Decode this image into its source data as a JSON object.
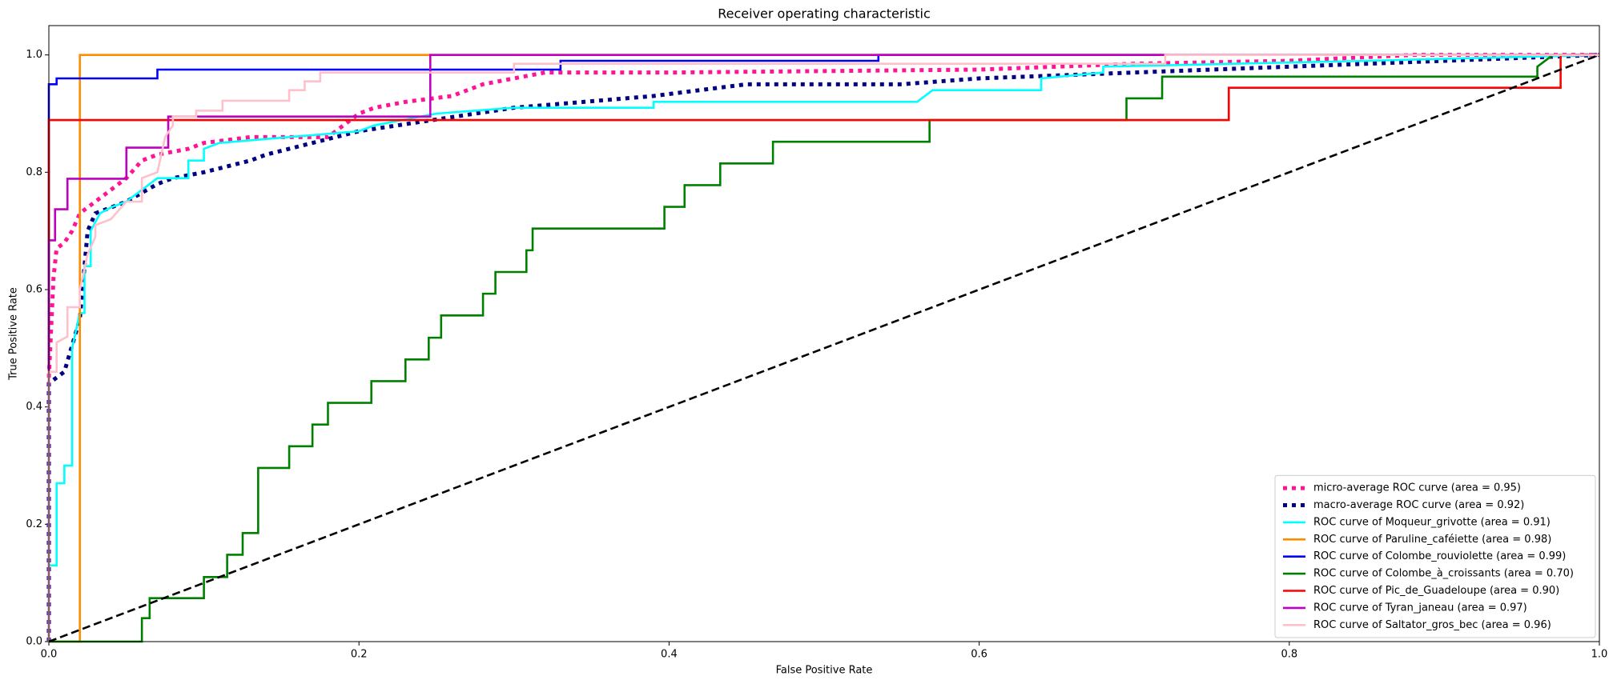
{
  "chart_data": {
    "type": "line",
    "title": "Receiver operating characteristic",
    "x_label": "False Positive Rate",
    "y_label": "True Positive Rate",
    "xlim": [
      0,
      1
    ],
    "ylim": [
      0,
      1.05
    ],
    "xticks": [
      {
        "value": 0,
        "label": "0.0"
      },
      0.2,
      0.4,
      0.6,
      0.8,
      {
        "value": 1,
        "label": "1.0"
      }
    ],
    "yticks": [
      {
        "value": 0,
        "label": "0.0"
      },
      0.2,
      0.4,
      0.6,
      0.8,
      {
        "value": 1,
        "label": "1.0"
      }
    ],
    "grid": false,
    "legend": "lower right",
    "series": [
      {
        "name": "micro-average ROC curve (area = 0.95)",
        "color": "deeppink",
        "style": "dotted",
        "x": [
          0,
          0,
          0.003,
          0.005,
          0.01,
          0.015,
          0.02,
          0.03,
          0.05,
          0.06,
          0.07,
          0.09,
          0.1,
          0.13,
          0.18,
          0.19,
          0.2,
          0.21,
          0.23,
          0.26,
          0.28,
          0.32,
          0.4,
          0.6,
          0.7,
          0.8,
          0.88,
          1
        ],
        "y": [
          0,
          0.45,
          0.62,
          0.67,
          0.68,
          0.7,
          0.73,
          0.75,
          0.79,
          0.82,
          0.83,
          0.84,
          0.85,
          0.86,
          0.86,
          0.88,
          0.9,
          0.91,
          0.92,
          0.93,
          0.95,
          0.97,
          0.97,
          0.975,
          0.985,
          0.99,
          1,
          1
        ]
      },
      {
        "name": "macro-average ROC curve (area = 0.92)",
        "color": "navy",
        "style": "dotted",
        "x": [
          0,
          0,
          0.01,
          0.02,
          0.025,
          0.03,
          0.05,
          0.07,
          0.08,
          0.1,
          0.13,
          0.14,
          0.17,
          0.2,
          0.25,
          0.3,
          0.39,
          0.45,
          0.55,
          0.6,
          0.7,
          0.8,
          0.9,
          1
        ],
        "y": [
          0,
          0.44,
          0.46,
          0.55,
          0.7,
          0.73,
          0.75,
          0.78,
          0.79,
          0.8,
          0.82,
          0.83,
          0.85,
          0.87,
          0.89,
          0.91,
          0.93,
          0.95,
          0.95,
          0.96,
          0.97,
          0.98,
          0.99,
          1
        ]
      },
      {
        "name": "ROC curve of Moqueur_grivotte (area = 0.91)",
        "color": "aqua",
        "style": "solid",
        "x": [
          0,
          0,
          0.005,
          0.005,
          0.01,
          0.01,
          0.015,
          0.015,
          0.02,
          0.023,
          0.023,
          0.027,
          0.027,
          0.033,
          0.04,
          0.05,
          0.06,
          0.07,
          0.09,
          0.09,
          0.1,
          0.1,
          0.11,
          0.2,
          0.21,
          0.25,
          0.3,
          0.39,
          0.39,
          0.56,
          0.57,
          0.64,
          0.64,
          0.68,
          0.68,
          0.85,
          1
        ],
        "y": [
          0,
          0.13,
          0.13,
          0.27,
          0.27,
          0.3,
          0.3,
          0.5,
          0.56,
          0.56,
          0.64,
          0.64,
          0.7,
          0.73,
          0.74,
          0.75,
          0.77,
          0.79,
          0.79,
          0.82,
          0.82,
          0.84,
          0.85,
          0.87,
          0.88,
          0.9,
          0.91,
          0.91,
          0.92,
          0.92,
          0.94,
          0.94,
          0.96,
          0.97,
          0.98,
          0.99,
          1
        ]
      },
      {
        "name": "ROC curve of Paruline_caféiette (area = 0.98)",
        "color": "darkorange",
        "style": "solid",
        "x": [
          0,
          0.02,
          0.02,
          1
        ],
        "y": [
          0,
          0,
          1,
          1
        ]
      },
      {
        "name": "ROC curve of Colombe_rouviolette (area = 0.99)",
        "color": "blue",
        "style": "solid",
        "x": [
          0,
          0,
          0.005,
          0.005,
          0.07,
          0.07,
          0.33,
          0.33,
          0.535,
          0.535,
          1
        ],
        "y": [
          0,
          0.95,
          0.95,
          0.96,
          0.96,
          0.975,
          0.975,
          0.99,
          0.99,
          1,
          1
        ]
      },
      {
        "name": "ROC curve of Colombe_à_croissants (area = 0.70)",
        "color": "green",
        "style": "solid",
        "x": [
          0,
          0.06,
          0.06,
          0.065,
          0.065,
          0.1,
          0.1,
          0.115,
          0.115,
          0.125,
          0.125,
          0.135,
          0.135,
          0.155,
          0.155,
          0.17,
          0.17,
          0.18,
          0.18,
          0.208,
          0.208,
          0.23,
          0.23,
          0.245,
          0.245,
          0.253,
          0.253,
          0.28,
          0.28,
          0.288,
          0.288,
          0.308,
          0.308,
          0.312,
          0.312,
          0.397,
          0.397,
          0.41,
          0.41,
          0.433,
          0.433,
          0.467,
          0.467,
          0.568,
          0.568,
          0.695,
          0.695,
          0.718,
          0.718,
          0.96,
          0.96,
          0.97,
          1
        ],
        "y": [
          0,
          0,
          0.04,
          0.04,
          0.074,
          0.074,
          0.11,
          0.11,
          0.148,
          0.148,
          0.185,
          0.185,
          0.296,
          0.296,
          0.333,
          0.333,
          0.37,
          0.37,
          0.407,
          0.407,
          0.444,
          0.444,
          0.481,
          0.481,
          0.518,
          0.518,
          0.556,
          0.556,
          0.593,
          0.593,
          0.63,
          0.63,
          0.667,
          0.667,
          0.704,
          0.704,
          0.741,
          0.741,
          0.778,
          0.778,
          0.815,
          0.815,
          0.852,
          0.852,
          0.889,
          0.889,
          0.926,
          0.926,
          0.963,
          0.963,
          0.98,
          1,
          1
        ]
      },
      {
        "name": "ROC curve of Pic_de_Guadeloupe (area = 0.90)",
        "color": "red",
        "style": "solid",
        "x": [
          0,
          0,
          0.761,
          0.761,
          0.975,
          0.975,
          1
        ],
        "y": [
          0,
          0.889,
          0.889,
          0.944,
          0.944,
          1,
          1
        ]
      },
      {
        "name": "ROC curve of Tyran_janeau (area = 0.97)",
        "color": "#bf00bf",
        "style": "solid",
        "x": [
          0,
          0,
          0.004,
          0.004,
          0.012,
          0.012,
          0.05,
          0.05,
          0.077,
          0.077,
          0.246,
          0.246,
          1
        ],
        "y": [
          0,
          0.684,
          0.684,
          0.737,
          0.737,
          0.789,
          0.789,
          0.842,
          0.842,
          0.895,
          0.895,
          1,
          1
        ]
      },
      {
        "name": "ROC curve of Saltator_gros_bec (area = 0.96)",
        "color": "pink",
        "style": "solid",
        "x": [
          0,
          0,
          0.005,
          0.005,
          0.012,
          0.012,
          0.02,
          0.02,
          0.025,
          0.03,
          0.03,
          0.04,
          0.05,
          0.06,
          0.06,
          0.07,
          0.075,
          0.08,
          0.08,
          0.095,
          0.095,
          0.112,
          0.112,
          0.155,
          0.155,
          0.165,
          0.165,
          0.175,
          0.175,
          0.3,
          0.3,
          0.72,
          0.72,
          1
        ],
        "y": [
          0,
          0.46,
          0.46,
          0.51,
          0.52,
          0.57,
          0.57,
          0.6,
          0.66,
          0.69,
          0.71,
          0.72,
          0.75,
          0.75,
          0.79,
          0.8,
          0.86,
          0.88,
          0.895,
          0.895,
          0.905,
          0.905,
          0.922,
          0.922,
          0.94,
          0.94,
          0.955,
          0.955,
          0.97,
          0.97,
          0.985,
          0.985,
          1,
          1
        ]
      }
    ],
    "diagonal": {
      "color": "black",
      "style": "dashed",
      "x": [
        0,
        1
      ],
      "y": [
        0,
        1
      ]
    }
  }
}
